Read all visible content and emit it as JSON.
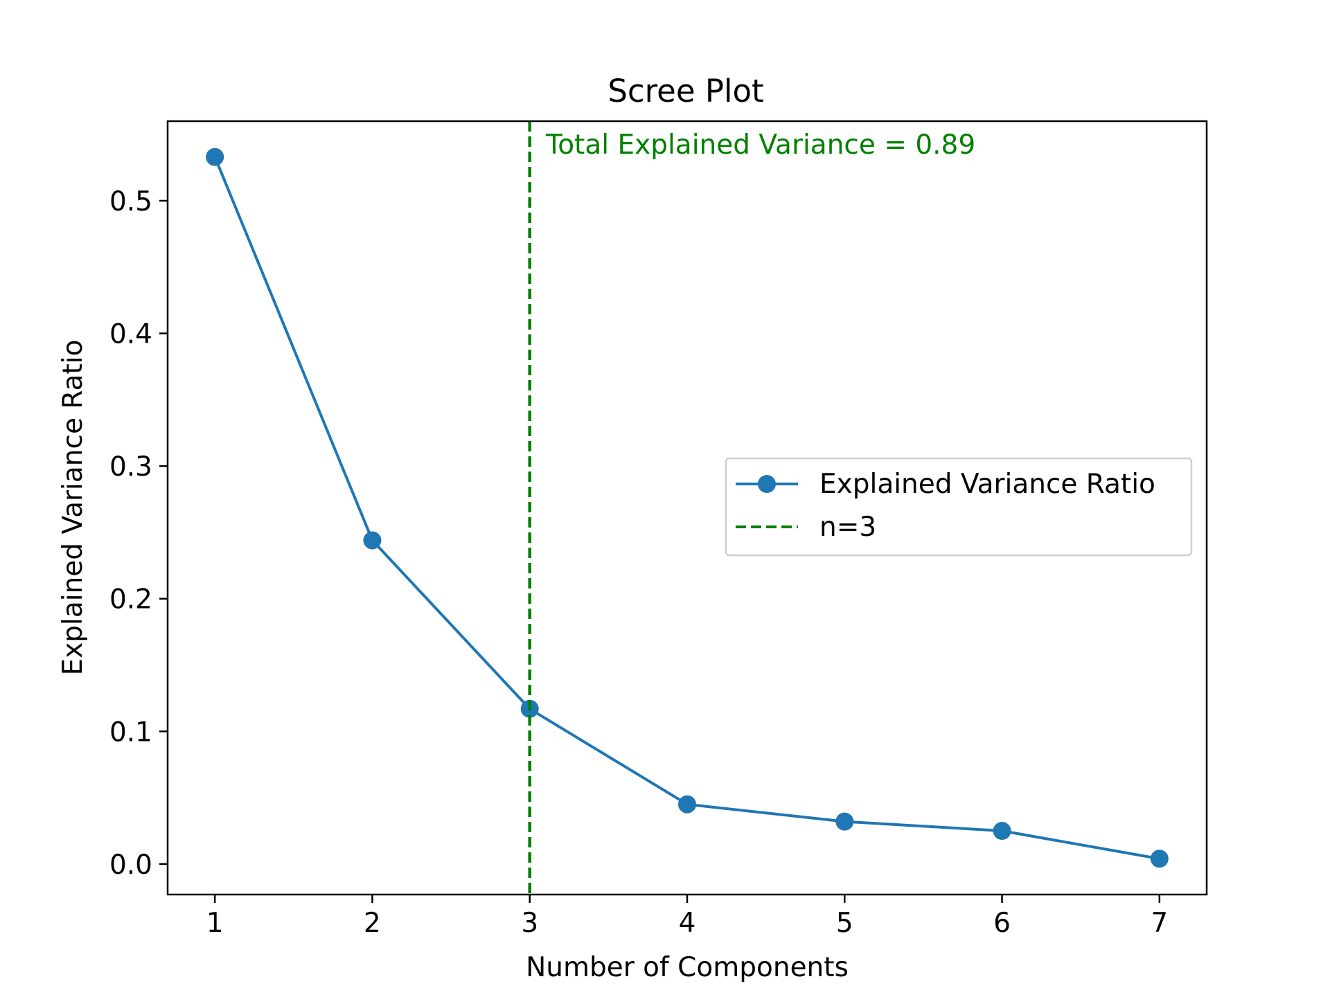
{
  "chart_data": {
    "type": "line",
    "title": "Scree Plot",
    "xlabel": "Number of Components",
    "ylabel": "Explained Variance Ratio",
    "xlim": [
      0.7,
      7.3
    ],
    "ylim": [
      -0.023,
      0.56
    ],
    "x_ticks": [
      1,
      2,
      3,
      4,
      5,
      6,
      7
    ],
    "y_ticks": [
      0.0,
      0.1,
      0.2,
      0.3,
      0.4,
      0.5
    ],
    "x_tick_labels": [
      "1",
      "2",
      "3",
      "4",
      "5",
      "6",
      "7"
    ],
    "y_tick_labels": [
      "0.0",
      "0.1",
      "0.2",
      "0.3",
      "0.4",
      "0.5"
    ],
    "grid": false,
    "series": [
      {
        "name": "Explained Variance Ratio",
        "color": "#1f77b4",
        "marker": "circle",
        "x": [
          1,
          2,
          3,
          4,
          5,
          6,
          7
        ],
        "y": [
          0.533,
          0.244,
          0.117,
          0.045,
          0.032,
          0.025,
          0.004
        ]
      }
    ],
    "vline": {
      "x": 3,
      "name": "n=3",
      "color": "#008000",
      "style": "dashed"
    },
    "annotation": {
      "text": "Total Explained Variance = 0.89",
      "color": "#008000",
      "x": 3,
      "y": 0.56
    },
    "legend": {
      "placement": "center-right",
      "entries": [
        "Explained Variance Ratio",
        "n=3"
      ]
    }
  }
}
